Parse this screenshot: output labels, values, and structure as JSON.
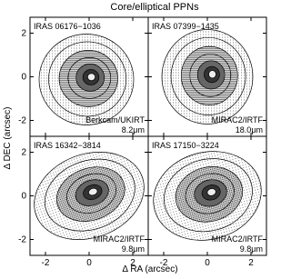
{
  "title": "Core/elliptical PPNs",
  "x_label": "Δ RA (arcsec)",
  "y_label": "Δ DEC (arcsec)",
  "ticks": [
    "-2",
    "0",
    "2"
  ],
  "panels": [
    {
      "name": "IRAS 06176−1036",
      "instrument": "Berkcam/UKIRT",
      "wavelength": "8.2μm"
    },
    {
      "name": "IRAS 07399−1435",
      "instrument": "MIRAC2/IRTF",
      "wavelength": "18.0μm"
    },
    {
      "name": "IRAS 16342−3814",
      "instrument": "MIRAC2/IRTF",
      "wavelength": "9.8μm"
    },
    {
      "name": "IRAS 17150−3224",
      "instrument": "MIRAC2/IRTF",
      "wavelength": "9.8μm"
    }
  ]
}
